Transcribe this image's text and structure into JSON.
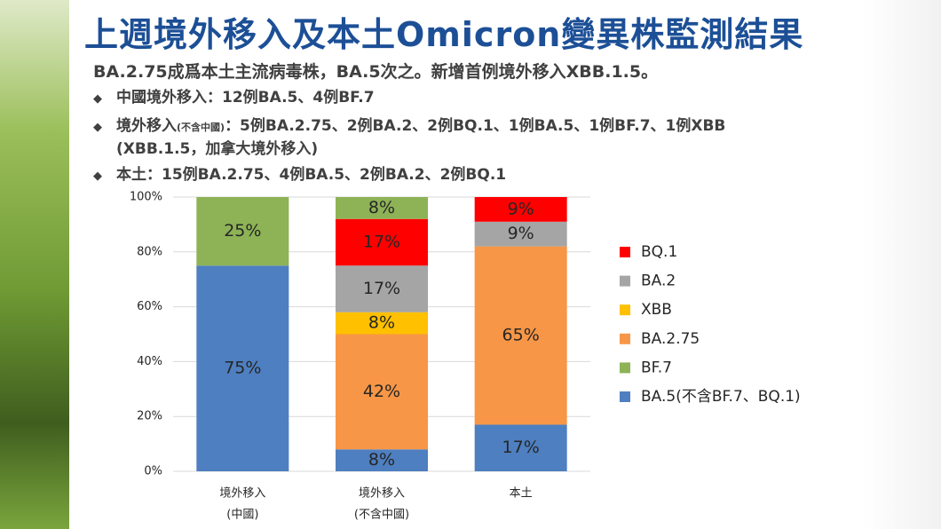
{
  "slide": {
    "title": "上週境外移入及本土Omicron變異株監測結果",
    "subtitle": "BA.2.75成爲本土主流病毒株，BA.5次之。新增首例境外移入XBB.1.5。",
    "bullets": [
      [
        "中國境外移入：12例BA.5、4例BF.7"
      ],
      [
        "境外移入",
        "(不含中國)",
        "：5例BA.2.75、2例BA.2、2例BQ.1、1例BA.5、1例BF.7、1例XBB",
        "(XBB.1.5，加拿大境外移入)"
      ],
      [
        "本土：15例BA.2.75、4例BA.5、2例BA.2、2例BQ.1"
      ]
    ]
  },
  "chart_data": {
    "type": "stacked_bar",
    "categories": [
      [
        "境外移入",
        "(中國)"
      ],
      [
        "境外移入",
        "(不含中國)"
      ],
      [
        "本土"
      ]
    ],
    "series": [
      {
        "name": "BA.5(不含BF.7、BQ.1)",
        "color": "#4e7fc0",
        "values": [
          75,
          8,
          17
        ],
        "value_labels": [
          "75%",
          "8%",
          "17%"
        ]
      },
      {
        "name": "BA.2.75",
        "color": "#f79646",
        "values": [
          null,
          42,
          65
        ],
        "value_labels": [
          null,
          "42%",
          "65%"
        ]
      },
      {
        "name": "XBB",
        "color": "#ffc000",
        "values": [
          null,
          8,
          null
        ],
        "value_labels": [
          null,
          "8%",
          null
        ]
      },
      {
        "name": "BA.2",
        "color": "#a5a5a5",
        "values": [
          null,
          17,
          9
        ],
        "value_labels": [
          null,
          "17%",
          "9%"
        ]
      },
      {
        "name": "BQ.1",
        "color": "#ff0000",
        "values": [
          null,
          17,
          9
        ],
        "value_labels": [
          null,
          "17%",
          "9%"
        ]
      },
      {
        "name": "BF.7",
        "color": "#8db356",
        "values": [
          25,
          8,
          null
        ],
        "value_labels": [
          "25%",
          "8%",
          null
        ]
      }
    ],
    "ylim": [
      0,
      100
    ],
    "yticks": [
      {
        "value": 0,
        "label": "0%"
      },
      {
        "value": 20,
        "label": "20%"
      },
      {
        "value": 40,
        "label": "40%"
      },
      {
        "value": 60,
        "label": "60%"
      },
      {
        "value": 80,
        "label": "80%"
      },
      {
        "value": 100,
        "label": "100%"
      }
    ],
    "grid": true,
    "legend": "right"
  }
}
